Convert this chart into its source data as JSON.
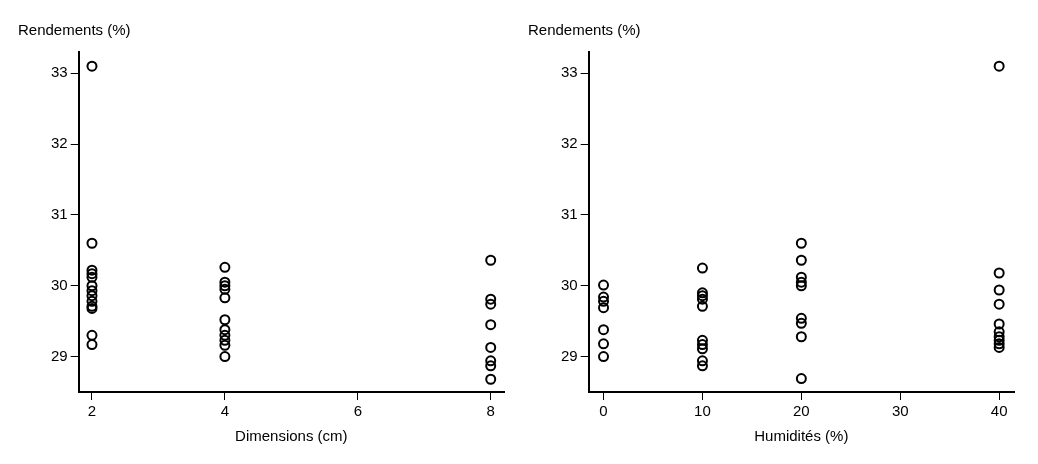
{
  "chart_data": [
    {
      "type": "scatter",
      "xlabel": "Dimensions (cm)",
      "ylabel": "Rendements (%)",
      "xlim": [
        1.8,
        8.2
      ],
      "xticks": [
        2,
        4,
        6,
        8
      ],
      "ylim": [
        28.5,
        33.3
      ],
      "yticks": [
        29,
        30,
        31,
        32,
        33
      ],
      "marker": "circle",
      "series": [
        {
          "color": "#000000",
          "x": [
            2,
            2,
            2,
            2,
            2,
            2,
            2,
            2,
            2,
            2,
            2,
            2,
            2,
            4,
            4,
            4,
            4,
            4,
            4,
            4,
            4,
            4,
            4,
            4,
            8,
            8,
            8,
            8,
            8,
            8,
            8,
            8
          ],
          "values": [
            33.1,
            30.6,
            30.22,
            30.17,
            30.12,
            30.0,
            29.93,
            29.86,
            29.78,
            29.71,
            29.68,
            29.3,
            29.17,
            30.26,
            30.05,
            30.0,
            29.95,
            29.83,
            29.52,
            29.38,
            29.3,
            29.23,
            29.16,
            29.0,
            30.36,
            29.81,
            29.74,
            29.45,
            29.13,
            28.94,
            28.87,
            28.68
          ]
        }
      ]
    },
    {
      "type": "scatter",
      "xlabel": "Humidités (%)",
      "ylabel": "Rendements (%)",
      "xlim": [
        -1.5,
        41.5
      ],
      "xticks": [
        0,
        10,
        20,
        30,
        40
      ],
      "ylim": [
        28.5,
        33.3
      ],
      "yticks": [
        29,
        30,
        31,
        32,
        33
      ],
      "marker": "circle",
      "series": [
        {
          "color": "#000000",
          "x": [
            0,
            0,
            0,
            0,
            0,
            0,
            0,
            10,
            10,
            10,
            10,
            10,
            10,
            10,
            10,
            10,
            10,
            20,
            20,
            20,
            20,
            20,
            20,
            20,
            20,
            20,
            40,
            40,
            40,
            40,
            40,
            40,
            40,
            40,
            40,
            40
          ],
          "values": [
            30.01,
            29.84,
            29.78,
            29.69,
            29.38,
            29.18,
            29.0,
            30.25,
            29.9,
            29.86,
            29.81,
            29.71,
            29.23,
            29.17,
            29.11,
            28.94,
            28.87,
            30.6,
            30.36,
            30.12,
            30.05,
            30.0,
            29.54,
            29.47,
            29.28,
            28.69,
            33.1,
            30.18,
            29.94,
            29.74,
            29.46,
            29.35,
            29.28,
            29.23,
            29.18,
            29.13
          ]
        }
      ]
    }
  ]
}
